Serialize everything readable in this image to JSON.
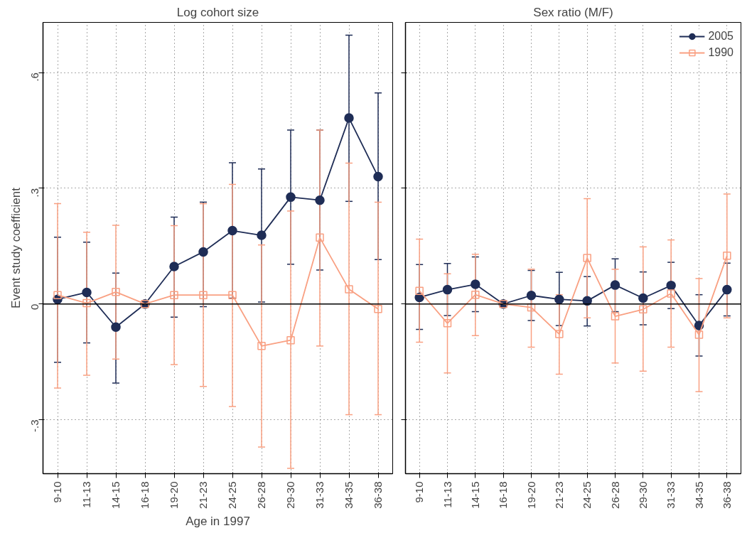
{
  "chart_data": [
    {
      "type": "line",
      "title": "Log cohort size",
      "xlabel": "Age in 1997",
      "ylabel": "Event study coefficient",
      "categories": [
        "9-10",
        "11-13",
        "14-15",
        "16-18",
        "19-20",
        "21-23",
        "24-25",
        "26-28",
        "29-30",
        "31-33",
        "34-35",
        "36-38"
      ],
      "ylim": [
        -0.44,
        0.73
      ],
      "yticks": [
        {
          "value": -0.3,
          "label": "-.3"
        },
        0,
        {
          "value": 0.3,
          "label": ".3"
        },
        {
          "value": 0.6,
          "label": ".6"
        }
      ],
      "grid": true,
      "legend": false,
      "line_style": "solid",
      "ref_lines": [
        {
          "axis": "y",
          "value": 0,
          "color": "#000000"
        }
      ],
      "series": [
        {
          "color": "#1f2d56",
          "marker": "circle",
          "values": [
            0.012,
            0.03,
            -0.06,
            0,
            0.097,
            0.135,
            0.19,
            0.178,
            0.277,
            0.269,
            0.482,
            0.33
          ],
          "errors": [
            [
              -0.151,
              0.173
            ],
            [
              -0.101,
              0.16
            ],
            [
              -0.205,
              0.08
            ],
            null,
            [
              -0.034,
              0.225
            ],
            [
              -0.007,
              0.264
            ],
            [
              0.015,
              0.366
            ],
            [
              0.005,
              0.35
            ],
            [
              0.103,
              0.451
            ],
            [
              0.088,
              0.451
            ],
            [
              0.266,
              0.697
            ],
            [
              0.115,
              0.547
            ]
          ]
        },
        {
          "color": "#f9a082",
          "marker": "square",
          "values": [
            0.023,
            0.002,
            0.031,
            0,
            0.023,
            0.023,
            0.023,
            -0.109,
            -0.094,
            0.172,
            0.038,
            -0.013
          ],
          "errors": [
            [
              -0.218,
              0.26
            ],
            [
              -0.185,
              0.186
            ],
            [
              -0.143,
              0.204
            ],
            null,
            [
              -0.157,
              0.203
            ],
            [
              -0.214,
              0.26
            ],
            [
              -0.266,
              0.31
            ],
            [
              -0.371,
              0.153
            ],
            [
              -0.426,
              0.241
            ],
            [
              -0.109,
              0.451
            ],
            [
              -0.287,
              0.365
            ],
            [
              -0.287,
              0.264
            ]
          ]
        }
      ]
    },
    {
      "type": "line",
      "title": "Sex ratio (M/F)",
      "categories": [
        "9-10",
        "11-13",
        "14-15",
        "16-18",
        "19-20",
        "21-23",
        "24-25",
        "26-28",
        "29-30",
        "31-33",
        "34-35",
        "36-38"
      ],
      "ylim": [
        -0.44,
        0.73
      ],
      "yticks": [
        {
          "value": -0.3,
          "label": null
        },
        {
          "value": 0,
          "label": null
        },
        {
          "value": 0.3,
          "label": null
        },
        {
          "value": 0.6,
          "label": null
        }
      ],
      "tick_labels": "x",
      "grid": true,
      "legend": "top right",
      "line_style": "solid",
      "ref_lines": [
        {
          "axis": "y",
          "value": 0,
          "color": "#000000"
        }
      ],
      "series": [
        {
          "name": "2005",
          "color": "#1f2d56",
          "marker": "circle",
          "values": [
            0.017,
            0.037,
            0.051,
            0,
            0.022,
            0.012,
            0.008,
            0.049,
            0.015,
            0.048,
            -0.056,
            0.037
          ],
          "errors": [
            [
              -0.066,
              0.102
            ],
            [
              -0.03,
              0.105
            ],
            [
              -0.02,
              0.122
            ],
            null,
            [
              -0.043,
              0.087
            ],
            [
              -0.056,
              0.082
            ],
            [
              -0.057,
              0.071
            ],
            [
              -0.02,
              0.117
            ],
            [
              -0.054,
              0.083
            ],
            [
              -0.012,
              0.108
            ],
            [
              -0.135,
              0.024
            ],
            [
              -0.031,
              0.106
            ]
          ]
        },
        {
          "name": "1990",
          "color": "#f9a082",
          "marker": "square",
          "values": [
            0.034,
            -0.05,
            0.024,
            0,
            -0.009,
            -0.078,
            0.119,
            -0.032,
            -0.014,
            0.027,
            -0.08,
            0.125
          ],
          "errors": [
            [
              -0.099,
              0.168
            ],
            [
              -0.179,
              0.078
            ],
            [
              -0.082,
              0.129
            ],
            null,
            [
              -0.112,
              0.09
            ],
            [
              -0.182,
              0.024
            ],
            [
              -0.036,
              0.273
            ],
            [
              -0.153,
              0.09
            ],
            [
              -0.174,
              0.148
            ],
            [
              -0.112,
              0.166
            ],
            [
              -0.227,
              0.066
            ],
            [
              -0.036,
              0.285
            ]
          ]
        }
      ]
    }
  ]
}
